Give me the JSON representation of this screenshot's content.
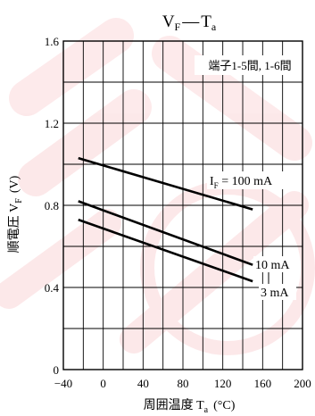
{
  "chart_data": {
    "type": "line",
    "title": {
      "main": "V",
      "main_sub": "F",
      "dash": "—",
      "var": "T",
      "var_sub": "a"
    },
    "xlabel": {
      "text": "周囲温度 T",
      "sub": "a",
      "unit": "(°C)"
    },
    "ylabel": {
      "text": "順電圧 V",
      "sub": "F",
      "unit": "(V)"
    },
    "x_ticks": [
      "−40",
      "0",
      "40",
      "80",
      "120",
      "160",
      "200"
    ],
    "y_ticks": [
      "0",
      "0.4",
      "0.8",
      "1.2",
      "1.6"
    ],
    "xlim": [
      -40,
      200
    ],
    "ylim": [
      0,
      1.6
    ],
    "x_grid_step": 20,
    "y_grid_step": 0.2,
    "grid": true,
    "note": "端子1-5間, 1-6間",
    "series": [
      {
        "name": "I_F = 100 mA",
        "label_main": "I",
        "label_sub": "F",
        "label_rest": " = 100 mA",
        "x": [
          -25,
          150
        ],
        "y": [
          1.03,
          0.78
        ]
      },
      {
        "name": "10 mA",
        "label_main": "10 mA",
        "x": [
          -25,
          150
        ],
        "y": [
          0.82,
          0.51
        ]
      },
      {
        "name": "3 mA",
        "label_main": "3 mA",
        "x": [
          -25,
          150
        ],
        "y": [
          0.73,
          0.43
        ]
      }
    ],
    "watermark_color": "#e8141c"
  }
}
